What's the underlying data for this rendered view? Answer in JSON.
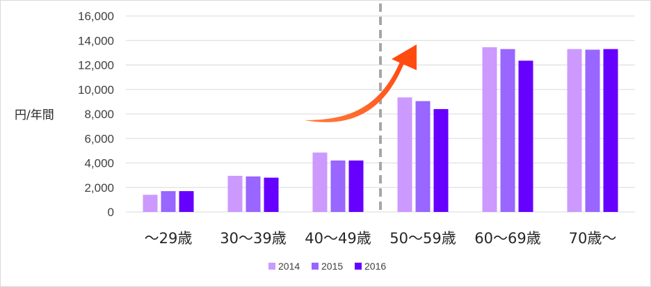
{
  "chart_data": {
    "type": "bar",
    "ylabel": "円/年間",
    "xlabel": "",
    "ylim": [
      0,
      16000
    ],
    "yticks": [
      0,
      2000,
      4000,
      6000,
      8000,
      10000,
      12000,
      14000,
      16000
    ],
    "ytick_labels": [
      "0",
      "2,000",
      "4,000",
      "6,000",
      "8,000",
      "10,000",
      "12,000",
      "14,000",
      "16,000"
    ],
    "categories": [
      "～29歳",
      "30～39歳",
      "40～49歳",
      "50～59歳",
      "60～69歳",
      "70歳～"
    ],
    "series": [
      {
        "name": "2014",
        "color": "#cc99ff",
        "values": [
          1400,
          2950,
          4850,
          9350,
          13450,
          13300
        ]
      },
      {
        "name": "2015",
        "color": "#9966ff",
        "values": [
          1700,
          2900,
          4200,
          9050,
          13300,
          13250
        ]
      },
      {
        "name": "2016",
        "color": "#6600ff",
        "values": [
          1700,
          2800,
          4200,
          8400,
          12350,
          13300
        ]
      }
    ],
    "grid": true,
    "legend_position": "bottom",
    "annotations": {
      "divider": "dashed vertical line between 40～49歳 and 50～59歳",
      "divider_color": "#a6a6a6",
      "arrow": "curved upward arrow toward 50～59歳",
      "arrow_color": "#ff5a1f"
    }
  }
}
